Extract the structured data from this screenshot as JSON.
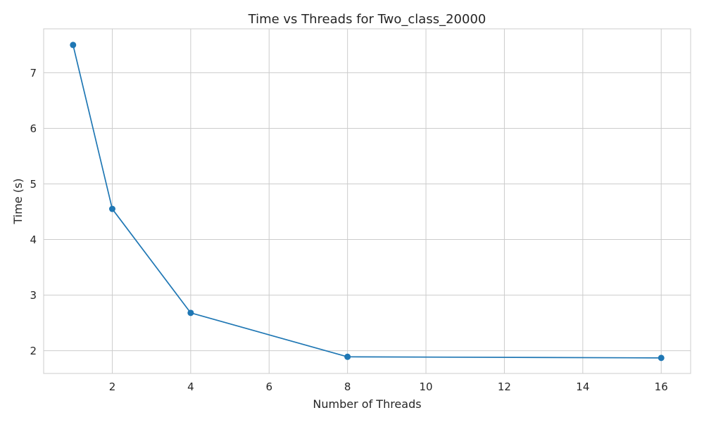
{
  "chart_data": {
    "type": "line",
    "title": "Time vs Threads for Two_class_20000",
    "xlabel": "Number of Threads",
    "ylabel": "Time (s)",
    "x": [
      1,
      2,
      4,
      8,
      16
    ],
    "series": [
      {
        "values": [
          7.5,
          4.55,
          2.68,
          1.89,
          1.87
        ]
      }
    ],
    "xlim": [
      0.25,
      16.75
    ],
    "ylim": [
      1.59,
      7.79
    ],
    "xticks": [
      2,
      4,
      6,
      8,
      10,
      12,
      14,
      16
    ],
    "yticks": [
      2,
      3,
      4,
      5,
      6,
      7
    ],
    "grid": true,
    "marker": "circle",
    "colors": {
      "line": "#1f77b4",
      "grid": "#cccccc",
      "axes_edge": "#cccccc",
      "text": "#262626",
      "background": "#ffffff"
    }
  }
}
